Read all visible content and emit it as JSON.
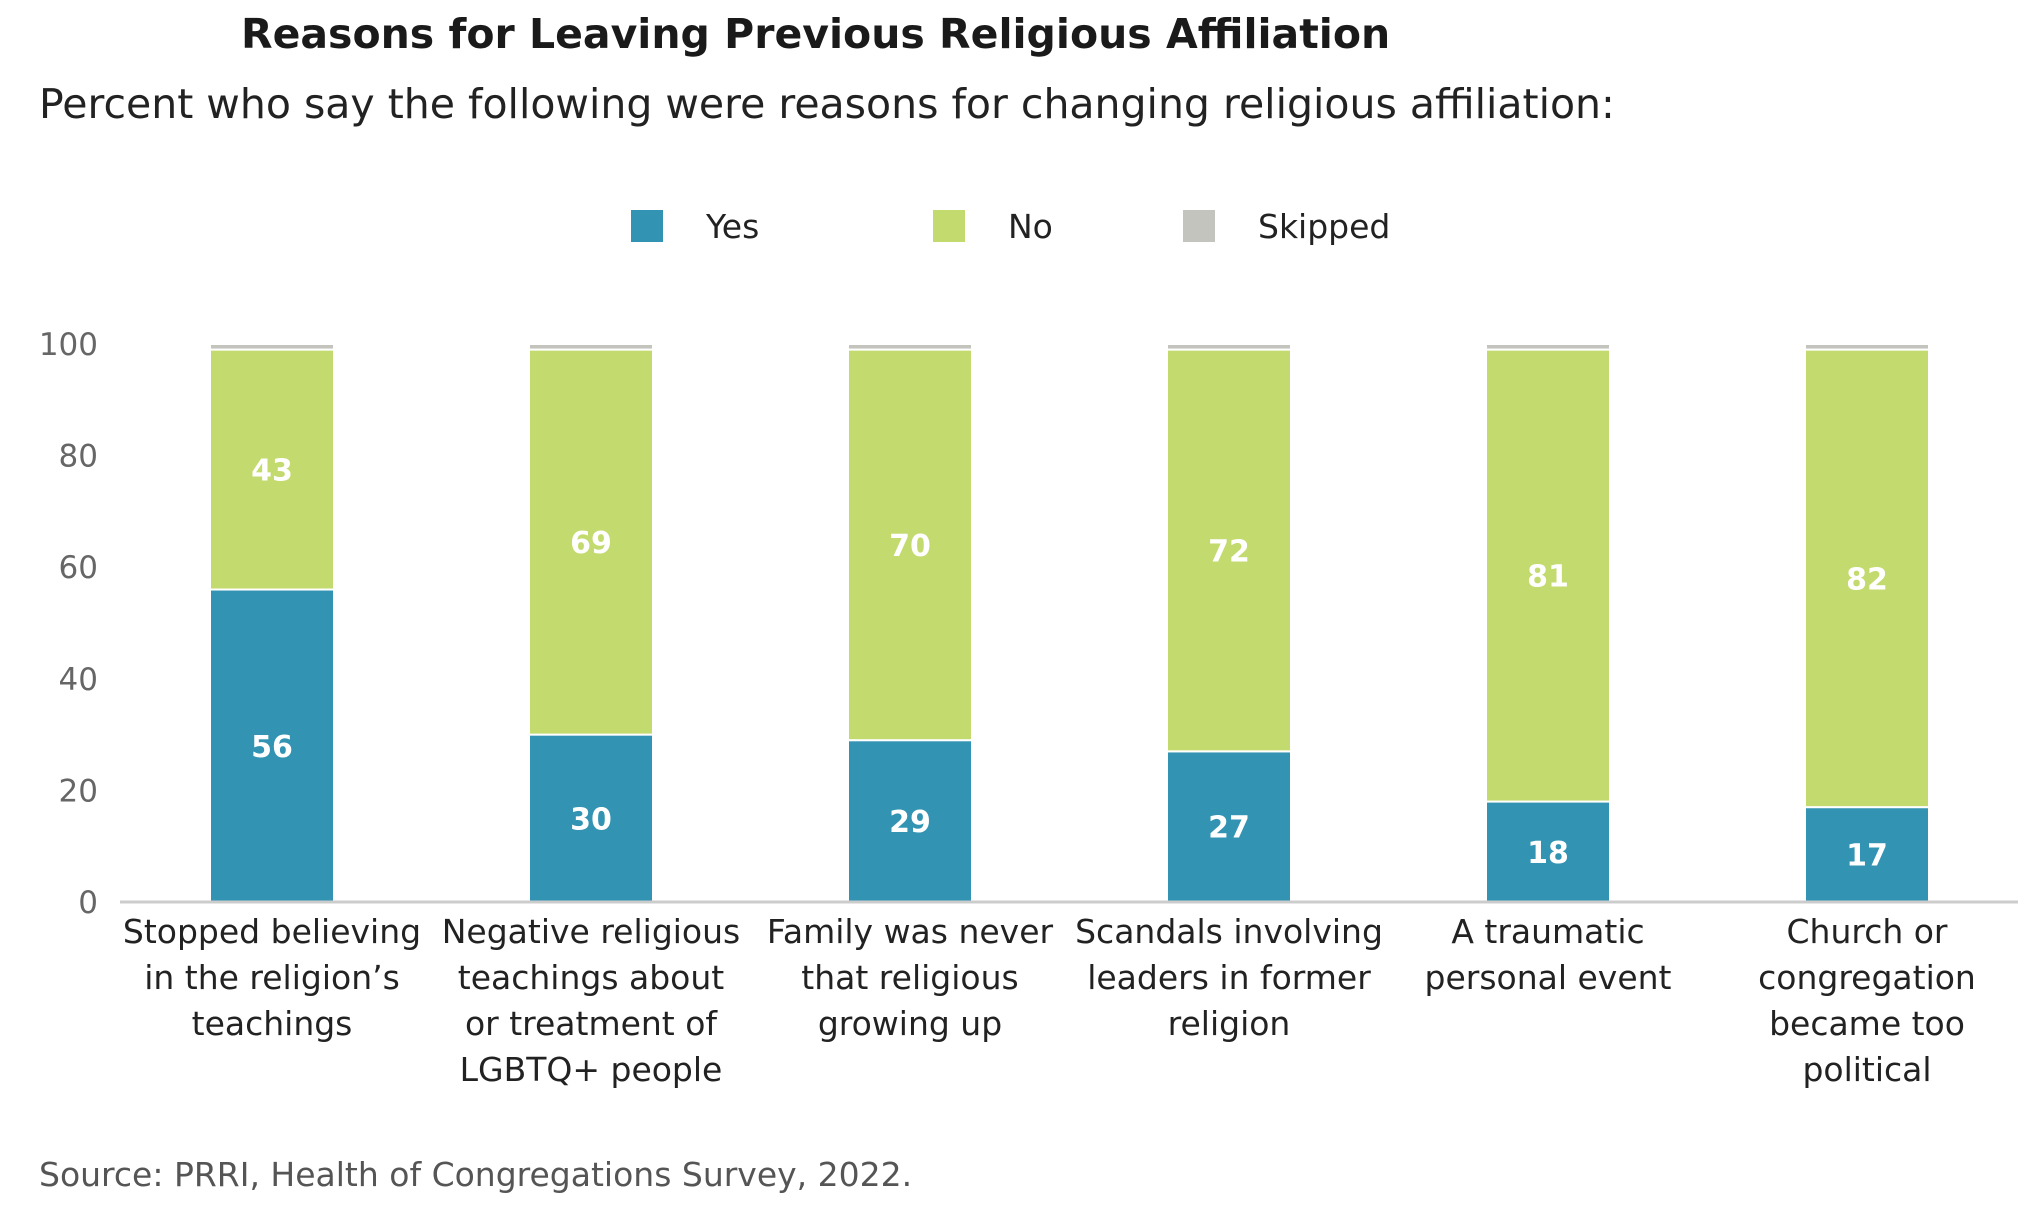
{
  "title": "Reasons for Leaving Previous Religious Affiliation",
  "subtitle": "Percent who say the following were reasons for changing religious affiliation:",
  "source": "Source: PRRI, Health of Congregations Survey, 2022.",
  "colors": {
    "yes": "#3293b2",
    "no": "#c3da6f",
    "skipped": "#c4c4bf",
    "axis": "#cccccc"
  },
  "chart_data": {
    "type": "bar",
    "stacked": true,
    "ylim": [
      0,
      100
    ],
    "yticks": [
      "0",
      "20",
      "40",
      "60",
      "80",
      "100"
    ],
    "legend_position": "top",
    "grid": false,
    "categories": [
      [
        "Stopped believing",
        "in the religion’s",
        "teachings"
      ],
      [
        "Negative religious",
        "teachings about",
        "or treatment of",
        "LGBTQ+ people"
      ],
      [
        "Family was never",
        "that religious",
        "growing up"
      ],
      [
        "Scandals involving",
        "leaders in former",
        "religion"
      ],
      [
        "A traumatic",
        "personal event"
      ],
      [
        "Church or",
        "congregation",
        "became too",
        "political"
      ]
    ],
    "series": [
      {
        "name": "Yes",
        "values": [
          56,
          30,
          29,
          27,
          18,
          17
        ]
      },
      {
        "name": "No",
        "values": [
          43,
          69,
          70,
          72,
          81,
          82
        ]
      },
      {
        "name": "Skipped",
        "values": [
          1,
          1,
          1,
          1,
          1,
          1
        ]
      }
    ],
    "data_labels_series": [
      "Yes",
      "No"
    ]
  }
}
